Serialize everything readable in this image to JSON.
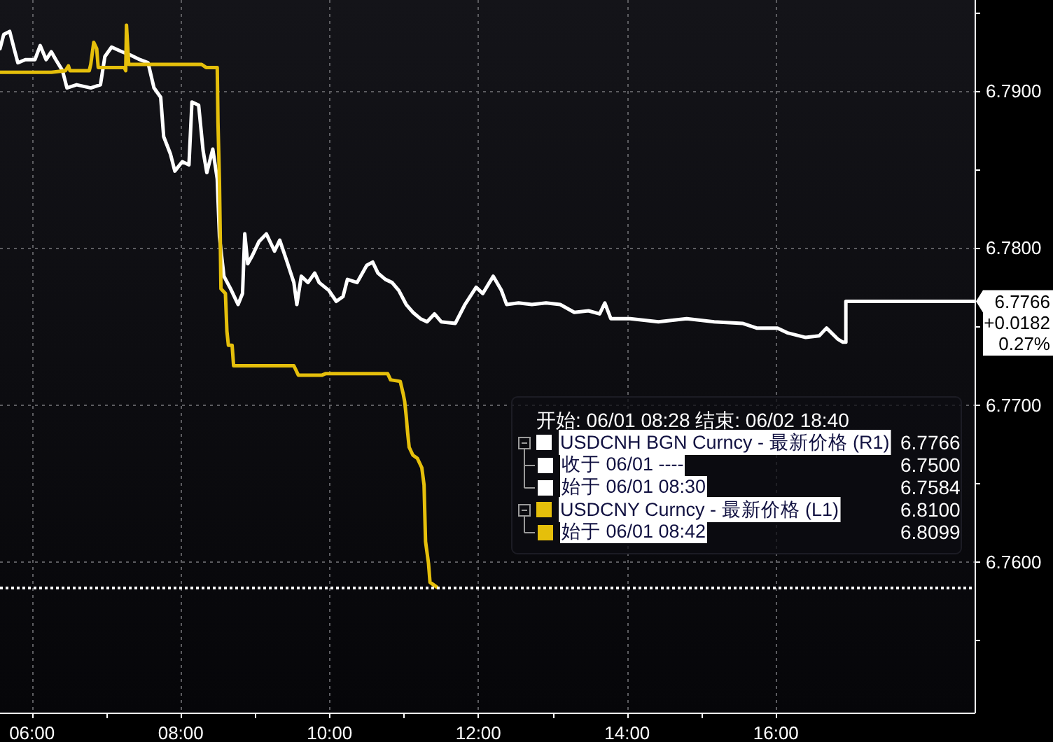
{
  "chart_data": {
    "type": "line",
    "series": [
      {
        "name": "USDCNH BGN Curncy - 最新价格 (R1)",
        "color": "#ffffff",
        "x": [
          5.57,
          5.62,
          5.7,
          5.76,
          5.81,
          5.91,
          6.04,
          6.11,
          6.19,
          6.26,
          6.32,
          6.41,
          6.47,
          6.6,
          6.79,
          6.92,
          6.98,
          7.07,
          7.21,
          7.32,
          7.45,
          7.56,
          7.64,
          7.73,
          7.77,
          7.86,
          7.92,
          8.02,
          8.11,
          8.15,
          8.24,
          8.3,
          8.35,
          8.43,
          8.49,
          8.52,
          8.58,
          8.67,
          8.77,
          8.83,
          8.86,
          8.9,
          8.96,
          9.05,
          9.15,
          9.26,
          9.33,
          9.43,
          9.52,
          9.56,
          9.62,
          9.71,
          9.8,
          9.86,
          9.99,
          10.09,
          10.18,
          10.24,
          10.37,
          10.5,
          10.58,
          10.65,
          10.75,
          10.84,
          10.93,
          11.03,
          11.12,
          11.22,
          11.31,
          11.41,
          11.5,
          11.69,
          11.82,
          11.97,
          12.06,
          12.2,
          12.31,
          12.38,
          12.54,
          12.72,
          12.91,
          13.1,
          13.29,
          13.48,
          13.63,
          13.7,
          13.78,
          14.04,
          14.42,
          14.8,
          15.17,
          15.55,
          15.74,
          16.02,
          16.15,
          16.4,
          16.58,
          16.68,
          16.83,
          16.9,
          16.94,
          16.94,
          18.67
        ],
        "values": [
          6.7927,
          6.7936,
          6.7938,
          6.7927,
          6.7918,
          6.792,
          6.792,
          6.7929,
          6.792,
          6.7925,
          6.792,
          6.7913,
          6.7902,
          6.7904,
          6.7902,
          6.7904,
          6.7922,
          6.7928,
          6.7925,
          6.7923,
          6.792,
          6.7918,
          6.7902,
          6.7896,
          6.7871,
          6.786,
          6.7849,
          6.7855,
          6.7853,
          6.7893,
          6.7891,
          6.7862,
          6.7848,
          6.7863,
          6.7844,
          6.7807,
          6.7782,
          6.7774,
          6.7764,
          6.7771,
          6.7809,
          6.779,
          6.7795,
          6.7804,
          6.7809,
          6.7798,
          6.7805,
          6.7791,
          6.7778,
          6.7764,
          6.7782,
          6.7778,
          6.7784,
          6.7778,
          6.7773,
          6.7766,
          6.7769,
          6.778,
          6.7778,
          6.7789,
          6.7791,
          6.7784,
          6.778,
          6.7778,
          6.7773,
          6.7764,
          6.7759,
          6.7755,
          6.7753,
          6.7758,
          6.7753,
          6.7752,
          6.7764,
          6.7775,
          6.7771,
          6.7782,
          6.7773,
          6.7764,
          6.7765,
          6.7764,
          6.7765,
          6.7764,
          6.7759,
          6.776,
          6.7758,
          6.7765,
          6.7755,
          6.7755,
          6.7753,
          6.7755,
          6.7753,
          6.7752,
          6.7749,
          6.7749,
          6.7746,
          6.7743,
          6.7744,
          6.7749,
          6.7742,
          6.774,
          6.774,
          6.7766,
          6.7766
        ]
      },
      {
        "name": "USDCNY Curncy - 最新价格 (L1)",
        "color": "#e5bf0b",
        "x": [
          5.57,
          6.26,
          6.45,
          6.49,
          6.51,
          6.77,
          6.79,
          6.83,
          6.87,
          6.89,
          7.24,
          7.26,
          7.27,
          7.3,
          7.36,
          8.28,
          8.34,
          8.49,
          8.5,
          8.52,
          8.53,
          8.54,
          8.6,
          8.62,
          8.64,
          8.69,
          8.71,
          9.52,
          9.58,
          9.9,
          9.95,
          10.78,
          10.82,
          10.95,
          10.99,
          11.01,
          11.03,
          11.05,
          11.07,
          11.12,
          11.18,
          11.24,
          11.27,
          11.28,
          11.29,
          11.33,
          11.35,
          11.44
        ],
        "values": [
          6.7912,
          6.7912,
          6.7913,
          6.7916,
          6.7913,
          6.7913,
          6.7917,
          6.7931,
          6.7927,
          6.7915,
          6.7915,
          6.7913,
          6.7942,
          6.7917,
          6.7917,
          6.7917,
          6.7915,
          6.7915,
          6.788,
          6.7842,
          6.7809,
          6.7774,
          6.7771,
          6.7747,
          6.7738,
          6.7738,
          6.7725,
          6.7725,
          6.7719,
          6.7719,
          6.772,
          6.772,
          6.7716,
          6.7715,
          6.7707,
          6.7702,
          6.7693,
          6.7682,
          6.7673,
          6.7668,
          6.7666,
          6.766,
          6.7649,
          6.7631,
          6.7613,
          6.7599,
          6.7587,
          6.7584
        ]
      }
    ],
    "xlim": [
      5.57,
      18.67
    ],
    "xticks": [
      {
        "value": 6,
        "label": "06:00"
      },
      {
        "value": 7,
        "label": null
      },
      {
        "value": 8,
        "label": "08:00"
      },
      {
        "value": 9,
        "label": null
      },
      {
        "value": 10,
        "label": "10:00"
      },
      {
        "value": 11,
        "label": null
      },
      {
        "value": 12,
        "label": "12:00"
      },
      {
        "value": 13,
        "label": null
      },
      {
        "value": 14,
        "label": "14:00"
      },
      {
        "value": 15,
        "label": null
      },
      {
        "value": 16,
        "label": "16:00"
      }
    ],
    "ylim": [
      6.7504,
      6.7958
    ],
    "yticks": [
      {
        "value": 6.755,
        "label": null
      },
      {
        "value": 6.76,
        "label": "6.7600"
      },
      {
        "value": 6.765,
        "label": null
      },
      {
        "value": 6.77,
        "label": "6.7700"
      },
      {
        "value": 6.775,
        "label": null
      },
      {
        "value": 6.78,
        "label": "6.7800"
      },
      {
        "value": 6.785,
        "label": null
      },
      {
        "value": 6.79,
        "label": "6.7900"
      },
      {
        "value": 6.795,
        "label": null
      }
    ],
    "ref_lines": [
      {
        "axis": "y",
        "value": 6.7584,
        "color": "#ffffff",
        "line_style": "dotted"
      }
    ],
    "annotations": [
      "开始: 06/01 08:28 结束: 06/02 18:40",
      "6.7766",
      "收于 06/01 ----",
      "6.7500",
      "始于 06/01 08:30",
      "6.7584",
      "6.8100",
      "始于 06/01 08:42",
      "6.8099",
      "6.7766",
      "+0.0182",
      "0.27%"
    ],
    "grid": true,
    "legend": "right",
    "marker": "none",
    "line_style": "solid"
  }
}
